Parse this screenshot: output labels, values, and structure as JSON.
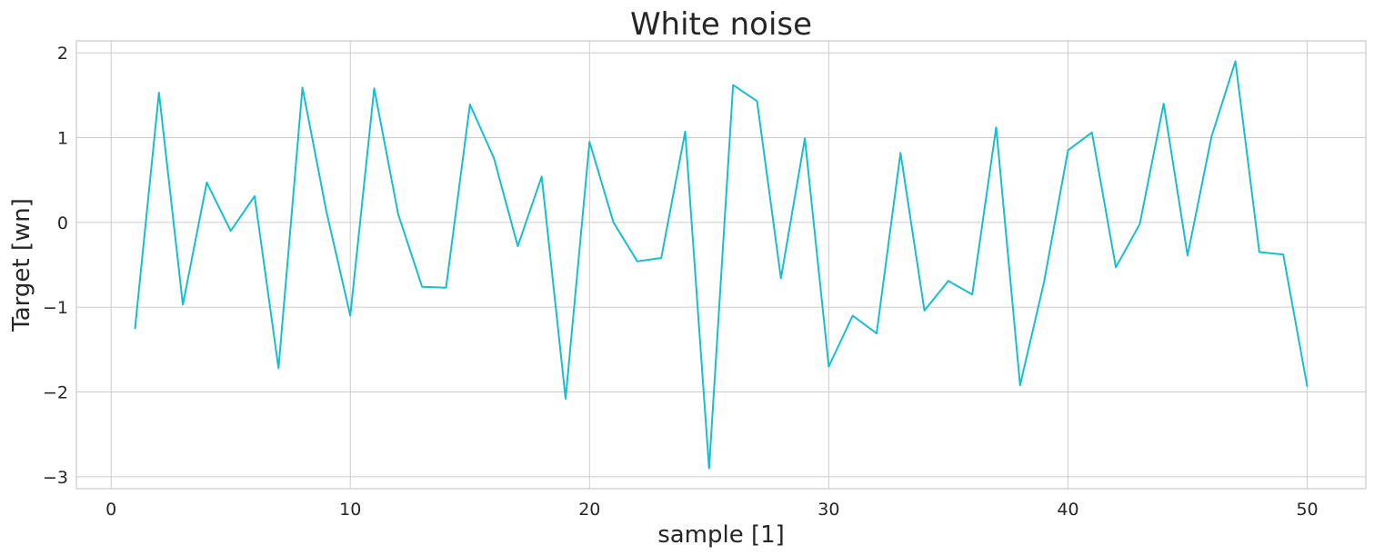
{
  "chart_data": {
    "type": "line",
    "title": "White noise",
    "xlabel": "sample [1]",
    "ylabel": "Target [wn]",
    "xlim": [
      -1.45,
      52.45
    ],
    "ylim": [
      -3.14,
      2.14
    ],
    "xticks": [
      0,
      10,
      20,
      30,
      40,
      50
    ],
    "xtick_labels": [
      "0",
      "10",
      "20",
      "30",
      "40",
      "50"
    ],
    "yticks": [
      -3,
      -2,
      -1,
      0,
      1,
      2
    ],
    "ytick_labels": [
      "−3",
      "−2",
      "−1",
      "0",
      "1",
      "2"
    ],
    "grid": true,
    "legend": "none",
    "colors": {
      "line": "#17becf",
      "grid": "#cccccc",
      "text": "#262626"
    },
    "series": [
      {
        "x": [
          1,
          2,
          3,
          4,
          5,
          6,
          7,
          8,
          9,
          10,
          11,
          12,
          13,
          14,
          15,
          16,
          17,
          18,
          19,
          20,
          21,
          22,
          23,
          24,
          25,
          26,
          27,
          28,
          29,
          30,
          31,
          32,
          33,
          34,
          35,
          36,
          37,
          38,
          39,
          40,
          41,
          42,
          43,
          44,
          45,
          46,
          47,
          48,
          49,
          50
        ],
        "values": [
          -1.25,
          1.53,
          -0.97,
          0.47,
          -0.1,
          0.31,
          -1.72,
          1.59,
          0.13,
          -1.1,
          1.58,
          0.1,
          -0.76,
          -0.77,
          1.39,
          0.76,
          -0.28,
          0.54,
          -2.08,
          0.95,
          0.0,
          -0.46,
          -0.42,
          1.07,
          -2.9,
          1.62,
          1.43,
          -0.66,
          0.99,
          -1.7,
          -1.1,
          -1.31,
          0.82,
          -1.04,
          -0.69,
          -0.85,
          1.12,
          -1.92,
          -0.7,
          0.85,
          1.06,
          -0.53,
          -0.02,
          1.4,
          -0.39,
          1.01,
          1.9,
          -0.35,
          -0.38,
          -1.93
        ]
      }
    ]
  }
}
